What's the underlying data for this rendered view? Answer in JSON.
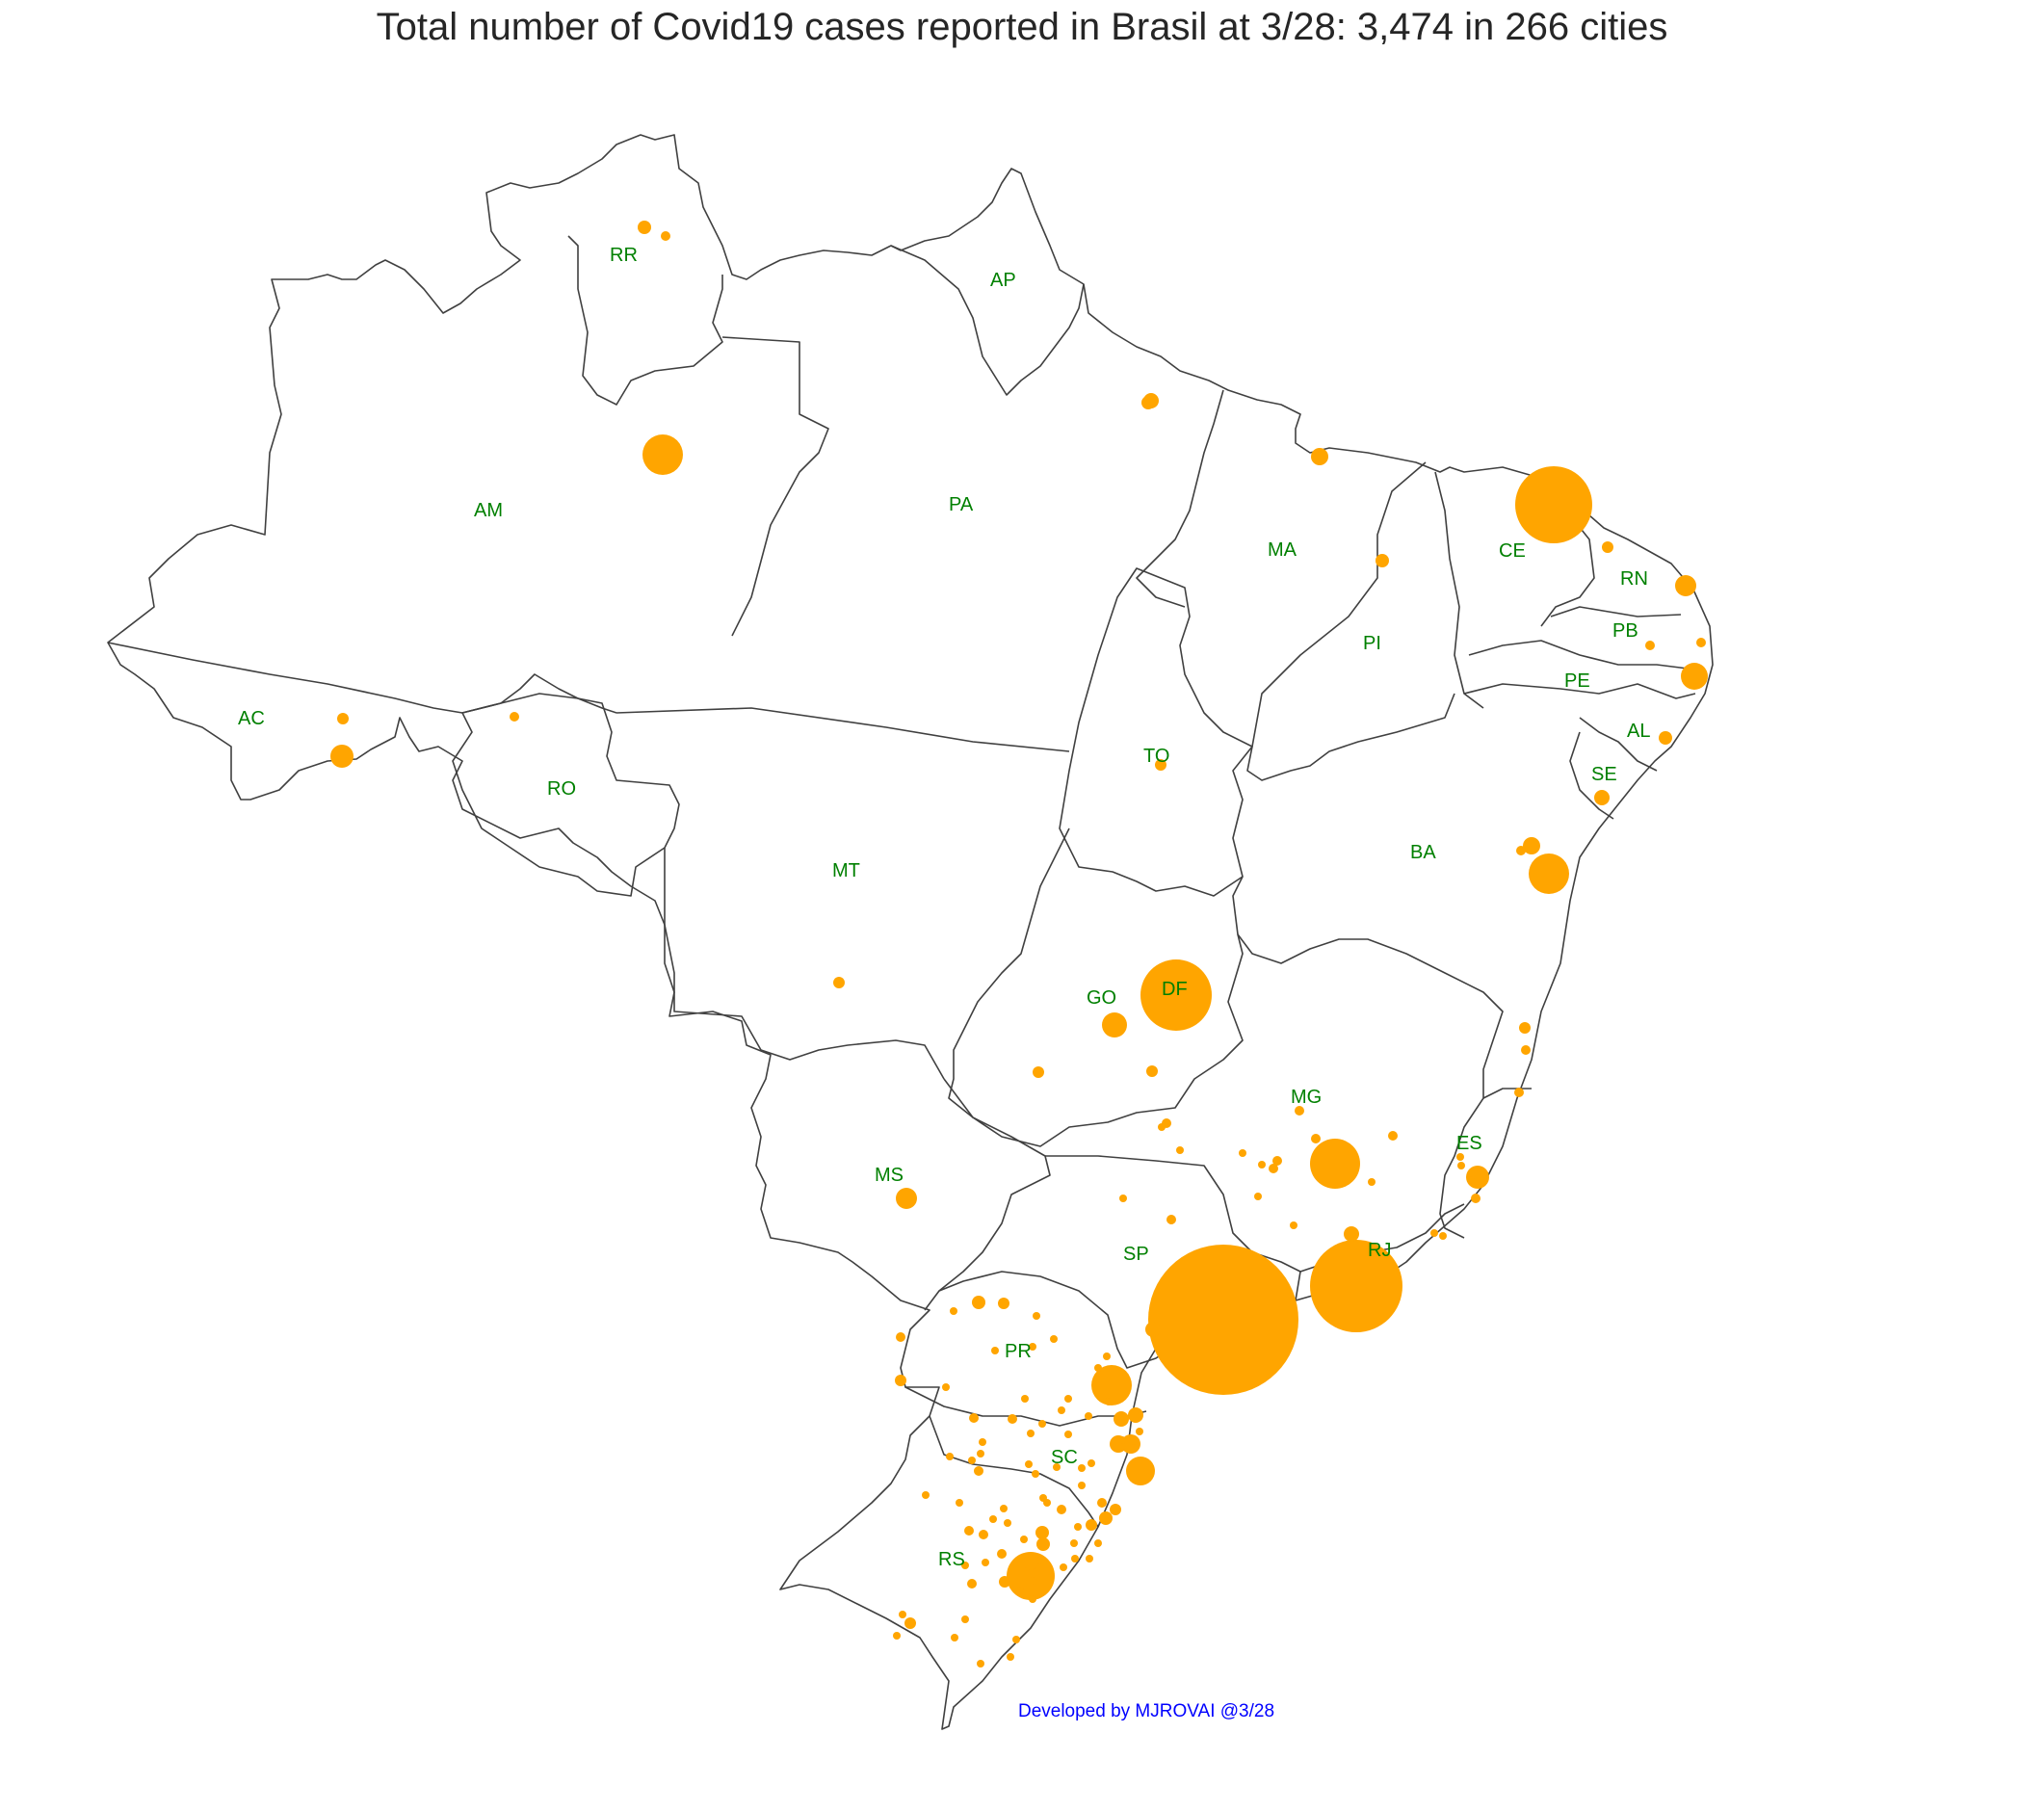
{
  "title": "Total number of Covid19 cases reported in Brasil at 3/28: 3,474 in 266 cities",
  "credit": "Developed by MJROVAI @3/28",
  "colors": {
    "bubble": "#ffa500",
    "label": "#008000",
    "border": "#404040",
    "credit": "#0000ff",
    "title": "#262626"
  },
  "states": [
    "RR",
    "AP",
    "AM",
    "PA",
    "MA",
    "CE",
    "RN",
    "PB",
    "PI",
    "PE",
    "AC",
    "RO",
    "TO",
    "AL",
    "SE",
    "MT",
    "BA",
    "GO",
    "DF",
    "MG",
    "ES",
    "MS",
    "SP",
    "RJ",
    "PR",
    "SC",
    "RS"
  ]
}
